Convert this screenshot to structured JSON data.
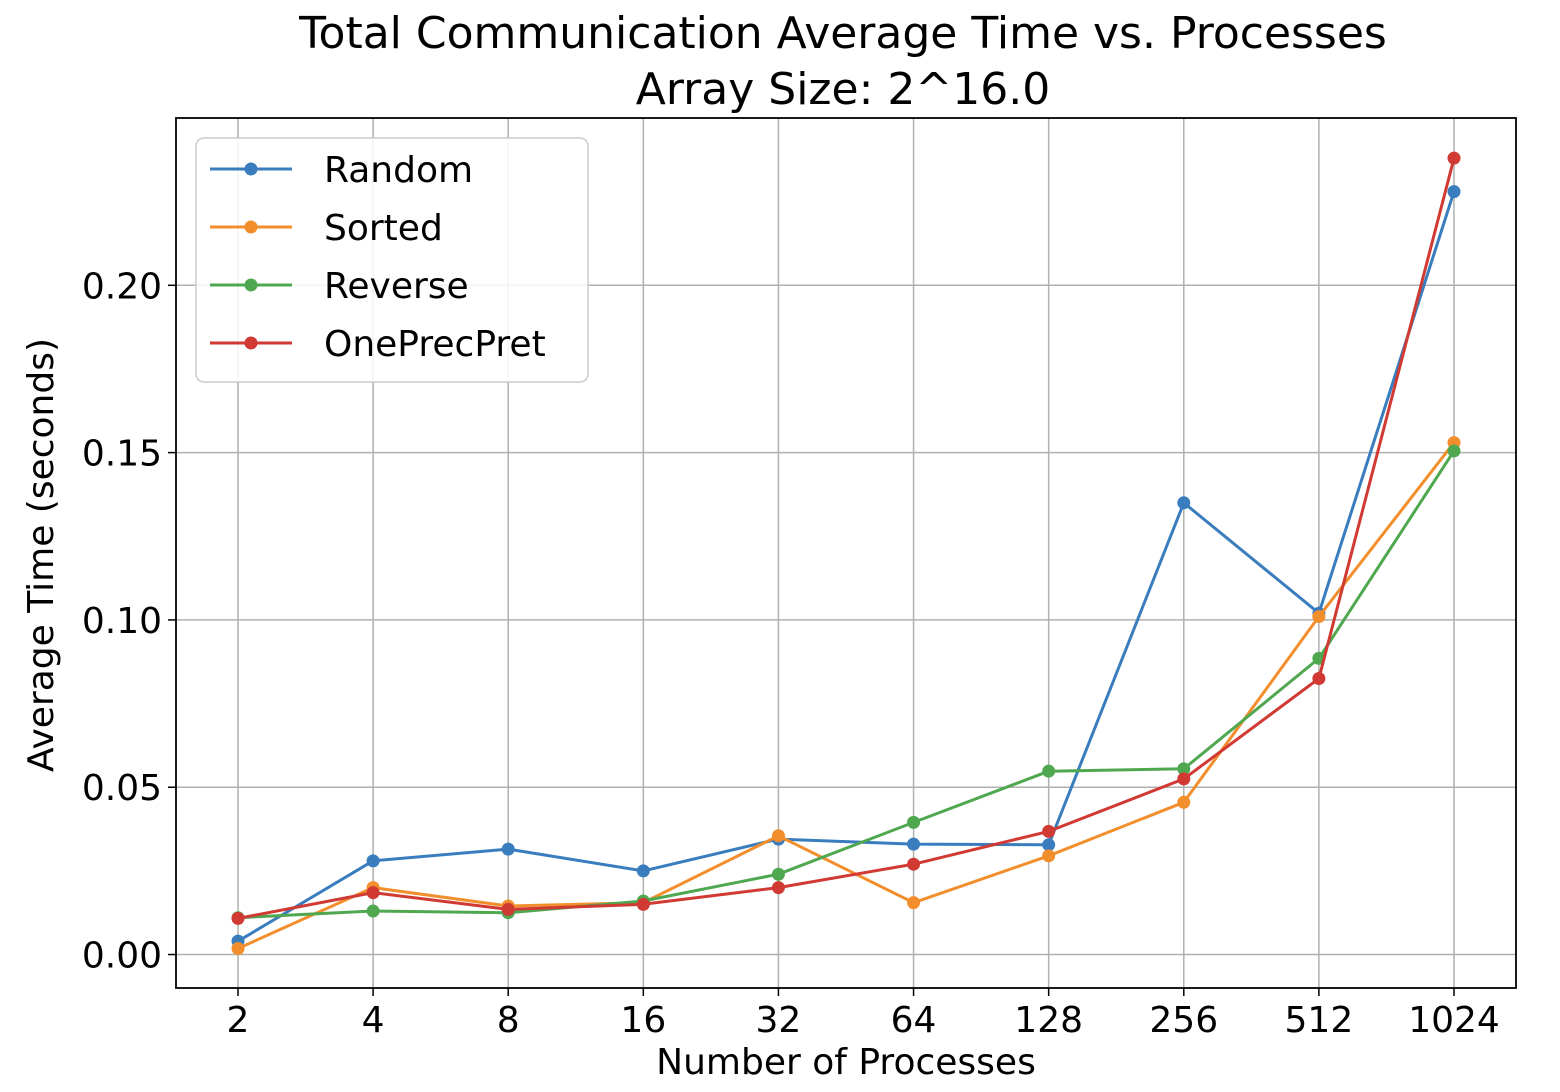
{
  "chart_data": {
    "type": "line",
    "title": "Total Communication Average Time vs. Processes",
    "subtitle": "Array Size: 2^16.0",
    "xlabel": "Number of Processes",
    "ylabel": "Average Time (seconds)",
    "categories": [
      "2",
      "4",
      "8",
      "16",
      "32",
      "64",
      "128",
      "256",
      "512",
      "1024"
    ],
    "ylim": [
      -0.01,
      0.25
    ],
    "yticks": [
      0.0,
      0.05,
      0.1,
      0.15,
      0.2
    ],
    "ytick_labels": [
      "0.00",
      "0.05",
      "0.10",
      "0.15",
      "0.20"
    ],
    "grid": true,
    "legend_position": "upper-left",
    "series": [
      {
        "name": "Random",
        "color": "#3a7dbf",
        "values": [
          0.004,
          0.028,
          0.0315,
          0.025,
          0.0345,
          0.033,
          0.0328,
          0.135,
          0.102,
          0.228
        ]
      },
      {
        "name": "Sorted",
        "color": "#f28e2b",
        "values": [
          0.0018,
          0.02,
          0.0145,
          0.0155,
          0.0355,
          0.0155,
          0.0295,
          0.0455,
          0.101,
          0.153
        ]
      },
      {
        "name": "Reverse",
        "color": "#4fa84f",
        "values": [
          0.011,
          0.013,
          0.0125,
          0.016,
          0.024,
          0.0395,
          0.0548,
          0.0555,
          0.0885,
          0.1505
        ]
      },
      {
        "name": "OnePrecPret",
        "color": "#d03a33",
        "values": [
          0.0108,
          0.0185,
          0.0135,
          0.015,
          0.02,
          0.027,
          0.0368,
          0.0525,
          0.0825,
          0.238
        ]
      }
    ]
  }
}
